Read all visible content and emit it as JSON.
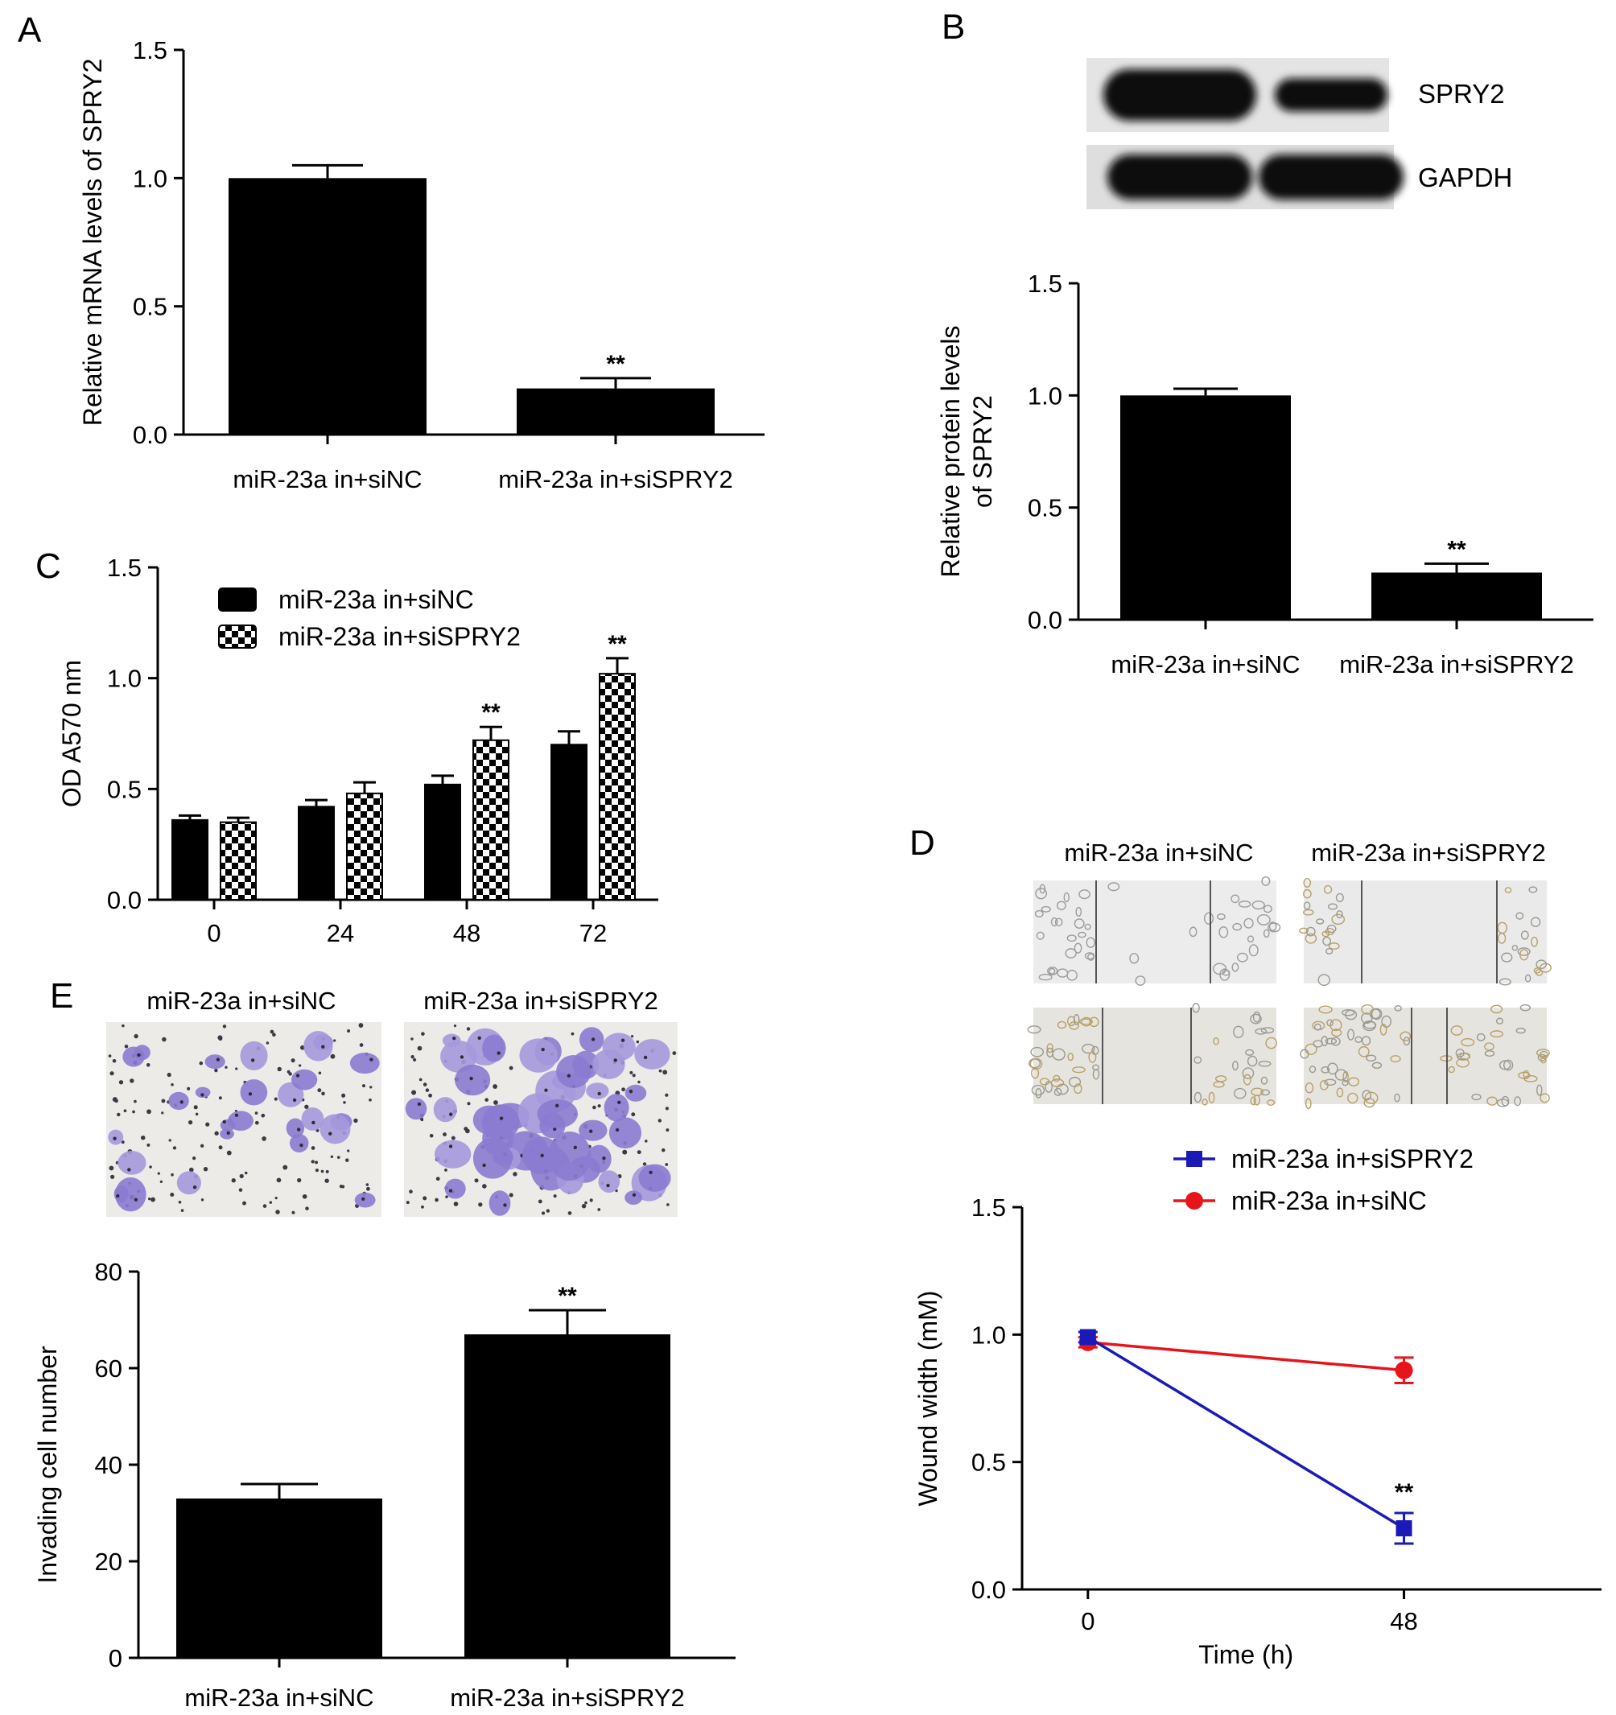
{
  "panels": {
    "A": {
      "letter": "A"
    },
    "B": {
      "letter": "B"
    },
    "C": {
      "letter": "C"
    },
    "D": {
      "letter": "D"
    },
    "E": {
      "letter": "E"
    }
  },
  "blot": {
    "rows": [
      {
        "label": "SPRY2",
        "intensity": [
          1.0,
          0.35
        ]
      },
      {
        "label": "GAPDH",
        "intensity": [
          1.0,
          1.0
        ]
      }
    ]
  },
  "images": {
    "groups": [
      "miR-23a in+siNC",
      "miR-23a in+siSPRY2"
    ]
  },
  "chart_data": [
    {
      "panel": "A",
      "type": "bar",
      "categories": [
        "miR-23a in+siNC",
        "miR-23a in+siSPRY2"
      ],
      "values": [
        1.0,
        0.18
      ],
      "errors": [
        0.05,
        0.04
      ],
      "significance": [
        "",
        "**"
      ],
      "ylabel": "Relative mRNA levels of SPRY2",
      "yticks": [
        "0.0",
        "0.5",
        "1.0",
        "1.5"
      ],
      "ylim": [
        0,
        1.5
      ],
      "color": "#000000"
    },
    {
      "panel": "B",
      "type": "bar",
      "categories": [
        "miR-23a in+siNC",
        "miR-23a in+siSPRY2"
      ],
      "values": [
        1.0,
        0.21
      ],
      "errors": [
        0.03,
        0.04
      ],
      "significance": [
        "",
        "**"
      ],
      "ylabel_lines": [
        "Relative protein levels",
        "of SPRY2"
      ],
      "yticks": [
        "0.0",
        "0.5",
        "1.0",
        "1.5"
      ],
      "ylim": [
        0,
        1.5
      ],
      "color": "#000000"
    },
    {
      "panel": "C",
      "type": "bar",
      "categories": [
        "0",
        "24",
        "48",
        "72"
      ],
      "series": [
        {
          "name": "miR-23a in+siNC",
          "values": [
            0.36,
            0.42,
            0.52,
            0.7
          ],
          "errors": [
            0.02,
            0.03,
            0.04,
            0.06
          ],
          "pattern": "solid",
          "significance": [
            "",
            "",
            "",
            ""
          ]
        },
        {
          "name": "miR-23a in+siSPRY2",
          "values": [
            0.35,
            0.48,
            0.72,
            1.02
          ],
          "errors": [
            0.02,
            0.05,
            0.06,
            0.07
          ],
          "pattern": "checker",
          "significance": [
            "",
            "",
            "**",
            "**"
          ]
        }
      ],
      "ylabel": "OD A570 nm",
      "yticks": [
        "0.0",
        "0.5",
        "1.0",
        "1.5"
      ],
      "ylim": [
        0,
        1.5
      ],
      "legend": "top-left"
    },
    {
      "panel": "D",
      "type": "line",
      "x": [
        0,
        48
      ],
      "xticks": [
        "0",
        "48"
      ],
      "series": [
        {
          "name": "miR-23a in+siSPRY2",
          "values": [
            0.99,
            0.24
          ],
          "errors": [
            0.02,
            0.06
          ],
          "color": "#1a1ab8",
          "marker": "square",
          "significance": [
            "",
            "**"
          ]
        },
        {
          "name": "miR-23a in+siNC",
          "values": [
            0.97,
            0.86
          ],
          "errors": [
            0.02,
            0.05
          ],
          "color": "#e8141b",
          "marker": "circle",
          "significance": [
            "",
            ""
          ]
        }
      ],
      "xlabel": "Time (h)",
      "ylabel": "Wound width (mM)",
      "yticks": [
        "0.0",
        "0.5",
        "1.0",
        "1.5"
      ],
      "ylim": [
        0,
        1.5
      ],
      "legend": "top"
    },
    {
      "panel": "E",
      "type": "bar",
      "categories": [
        "miR-23a in+siNC",
        "miR-23a in+siSPRY2"
      ],
      "values": [
        33,
        67
      ],
      "errors": [
        3,
        5
      ],
      "significance": [
        "",
        "**"
      ],
      "ylabel": "Invading cell number",
      "yticks": [
        "0",
        "20",
        "40",
        "60",
        "80"
      ],
      "ylim": [
        0,
        80
      ],
      "color": "#000000"
    }
  ]
}
